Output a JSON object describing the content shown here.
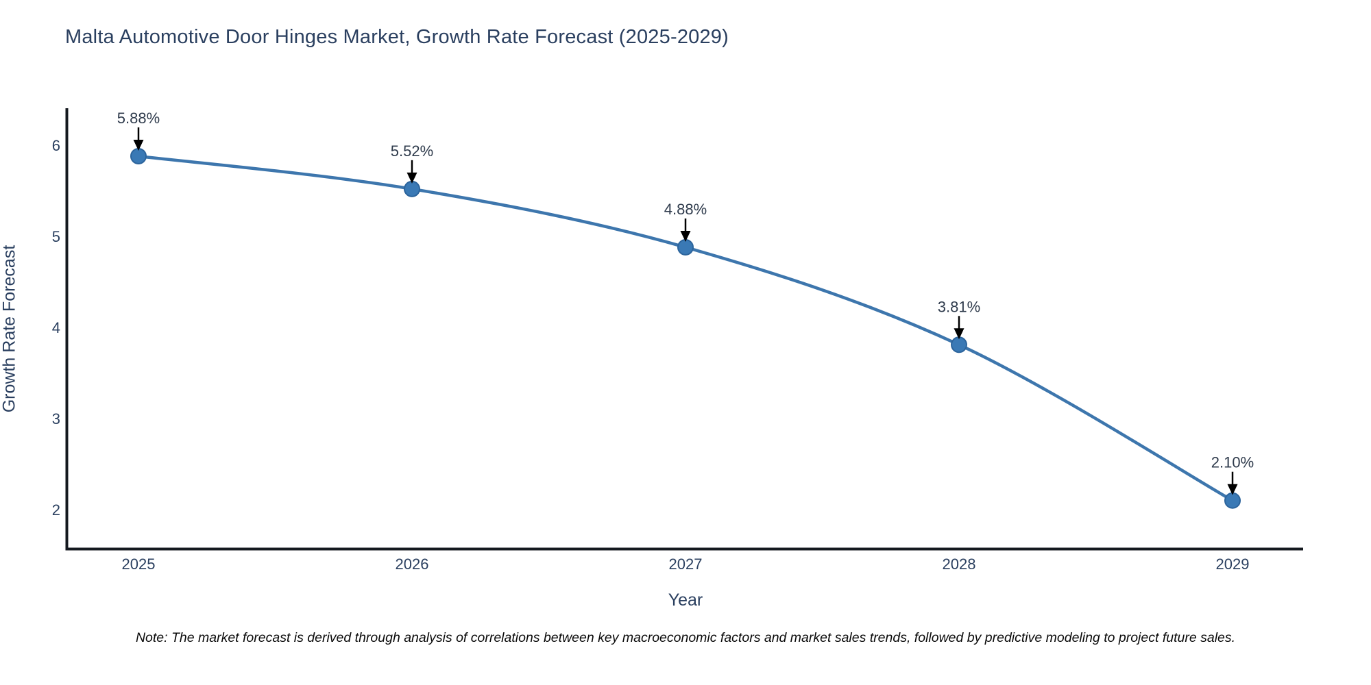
{
  "chart": {
    "title": "Malta Automotive Door Hinges Market, Growth Rate Forecast (2025-2029)",
    "note": "Note: The market forecast is derived through analysis of correlations between key macroeconomic factors and market sales trends, followed by predictive modeling to project future sales."
  },
  "chart_data": {
    "type": "line",
    "title": "Malta Automotive Door Hinges Market, Growth Rate Forecast (2025-2029)",
    "xlabel": "Year",
    "ylabel": "Growth Rate Forecast",
    "x": [
      2025,
      2026,
      2027,
      2028,
      2029
    ],
    "series": [
      {
        "name": "Growth Rate Forecast",
        "values": [
          5.88,
          5.52,
          4.88,
          3.81,
          2.1
        ]
      }
    ],
    "point_labels": [
      "5.88%",
      "5.52%",
      "4.88%",
      "3.81%",
      "2.10%"
    ],
    "yticks": [
      2,
      3,
      4,
      5,
      6
    ],
    "ylim": [
      1.56,
      6.41
    ],
    "grid": false,
    "legend_position": "none",
    "marker_style": "circle-with-down-arrow-annotation",
    "colors": {
      "line": "#3d76ad",
      "marker_fill": "#3a79b5",
      "marker_edge": "#2c649c",
      "annotation_arrow": "#000000",
      "annotation_text": "#2f3b4c",
      "axis_line": "#14191f",
      "tick_text": "#2a3f5f",
      "title_text": "#2a3f5f"
    }
  }
}
